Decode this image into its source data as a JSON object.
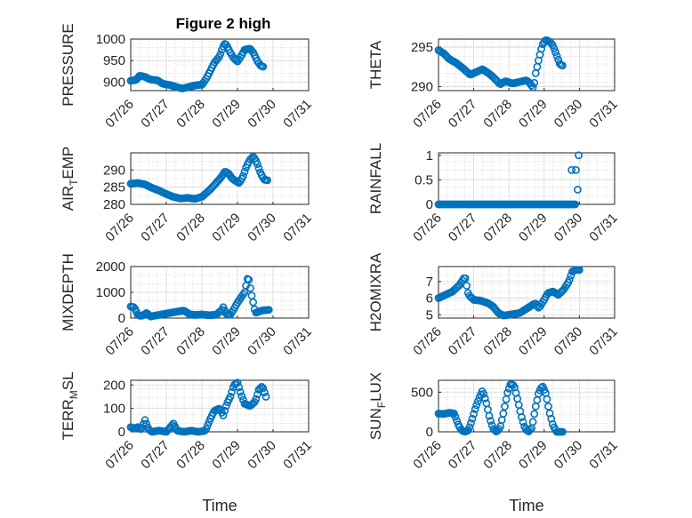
{
  "figure_title": "Figure 2 high",
  "series_color": "#0072BD",
  "chart_data": [
    {
      "type": "scatter",
      "name": "pressure",
      "ylabel": "PRESSURE",
      "ylabel_sub": "",
      "xlim": [
        0,
        5
      ],
      "ylim": [
        880,
        1000
      ],
      "yticks": [
        900,
        950,
        1000
      ],
      "xticks": [
        "07/26",
        "07/27",
        "07/28",
        "07/29",
        "07/30",
        "07/31"
      ],
      "xlabel": "",
      "marker": "circle-open",
      "anchors": [
        [
          0,
          903
        ],
        [
          0.15,
          905
        ],
        [
          0.25,
          915
        ],
        [
          0.4,
          912
        ],
        [
          0.55,
          906
        ],
        [
          0.75,
          904
        ],
        [
          0.9,
          896
        ],
        [
          1.1,
          893
        ],
        [
          1.3,
          888
        ],
        [
          1.45,
          885
        ],
        [
          1.6,
          888
        ],
        [
          1.8,
          892
        ],
        [
          2.0,
          894
        ],
        [
          2.1,
          905
        ],
        [
          2.2,
          920
        ],
        [
          2.35,
          945
        ],
        [
          2.5,
          960
        ],
        [
          2.58,
          980
        ],
        [
          2.65,
          990
        ],
        [
          2.7,
          985
        ],
        [
          2.8,
          968
        ],
        [
          2.9,
          955
        ],
        [
          3.0,
          948
        ],
        [
          3.1,
          960
        ],
        [
          3.2,
          975
        ],
        [
          3.35,
          978
        ],
        [
          3.45,
          968
        ],
        [
          3.55,
          950
        ],
        [
          3.65,
          938
        ],
        [
          3.75,
          935
        ]
      ]
    },
    {
      "type": "scatter",
      "name": "theta",
      "ylabel": "THETA",
      "ylabel_sub": "",
      "xlim": [
        0,
        5
      ],
      "ylim": [
        289.5,
        296
      ],
      "yticks": [
        290,
        295
      ],
      "xticks": [
        "07/26",
        "07/27",
        "07/28",
        "07/29",
        "07/30",
        "07/31"
      ],
      "xlabel": "",
      "marker": "circle-open",
      "anchors": [
        [
          0,
          294.6
        ],
        [
          0.15,
          294.2
        ],
        [
          0.3,
          293.5
        ],
        [
          0.5,
          293.0
        ],
        [
          0.7,
          292.3
        ],
        [
          0.9,
          291.5
        ],
        [
          1.05,
          291.8
        ],
        [
          1.25,
          292.2
        ],
        [
          1.45,
          291.6
        ],
        [
          1.6,
          291.0
        ],
        [
          1.75,
          290.3
        ],
        [
          1.9,
          290.7
        ],
        [
          2.1,
          290.4
        ],
        [
          2.3,
          290.6
        ],
        [
          2.5,
          290.8
        ],
        [
          2.6,
          290.4
        ],
        [
          2.7,
          289.8
        ],
        [
          2.75,
          291.5
        ],
        [
          2.85,
          293.5
        ],
        [
          2.95,
          295.3
        ],
        [
          3.05,
          295.9
        ],
        [
          3.15,
          295.7
        ],
        [
          3.25,
          295.2
        ],
        [
          3.35,
          294.0
        ],
        [
          3.45,
          292.8
        ],
        [
          3.55,
          292.6
        ]
      ]
    },
    {
      "type": "scatter",
      "name": "air-temp",
      "ylabel": "AIR",
      "ylabel_sub": "T",
      "ylabel_tail": "EMP",
      "xlim": [
        0,
        5
      ],
      "ylim": [
        280,
        295
      ],
      "yticks": [
        280,
        285,
        290
      ],
      "xticks": [
        "07/26",
        "07/27",
        "07/28",
        "07/29",
        "07/30",
        "07/31"
      ],
      "xlabel": "",
      "marker": "circle-open",
      "anchors": [
        [
          0,
          286
        ],
        [
          0.2,
          286.2
        ],
        [
          0.4,
          285.8
        ],
        [
          0.6,
          284.8
        ],
        [
          0.8,
          284
        ],
        [
          1.0,
          283
        ],
        [
          1.2,
          282.2
        ],
        [
          1.4,
          281.7
        ],
        [
          1.6,
          281.9
        ],
        [
          1.8,
          281.6
        ],
        [
          2.0,
          282.2
        ],
        [
          2.2,
          284
        ],
        [
          2.4,
          286.2
        ],
        [
          2.55,
          288
        ],
        [
          2.65,
          289.6
        ],
        [
          2.75,
          289
        ],
        [
          2.85,
          287.5
        ],
        [
          2.95,
          286.8
        ],
        [
          3.05,
          286.2
        ],
        [
          3.15,
          288
        ],
        [
          3.25,
          291
        ],
        [
          3.35,
          293
        ],
        [
          3.45,
          294
        ],
        [
          3.55,
          292
        ],
        [
          3.65,
          289
        ],
        [
          3.75,
          287.2
        ],
        [
          3.85,
          287
        ]
      ]
    },
    {
      "type": "scatter",
      "name": "rainfall",
      "ylabel": "RAINFALL",
      "ylabel_sub": "",
      "xlim": [
        0,
        5
      ],
      "ylim": [
        0,
        1.05
      ],
      "yticks": [
        0,
        0.5,
        1
      ],
      "xticks": [
        "07/26",
        "07/27",
        "07/28",
        "07/29",
        "07/30",
        "07/31"
      ],
      "xlabel": "",
      "marker": "circle-open",
      "zero_span": [
        0,
        3.9
      ],
      "extra": [
        [
          3.78,
          0.7
        ],
        [
          3.9,
          0.7
        ],
        [
          3.95,
          0.3
        ],
        [
          3.98,
          1.0
        ]
      ]
    },
    {
      "type": "scatter",
      "name": "mixdepth",
      "ylabel": "MIXDEPTH",
      "ylabel_sub": "",
      "xlim": [
        0,
        5
      ],
      "ylim": [
        0,
        2000
      ],
      "yticks": [
        0,
        1000,
        2000
      ],
      "xticks": [
        "07/26",
        "07/27",
        "07/28",
        "07/29",
        "07/30",
        "07/31"
      ],
      "xlabel": "",
      "marker": "circle-open",
      "anchors": [
        [
          0,
          450
        ],
        [
          0.1,
          420
        ],
        [
          0.2,
          120
        ],
        [
          0.3,
          80
        ],
        [
          0.45,
          200
        ],
        [
          0.55,
          60
        ],
        [
          0.7,
          100
        ],
        [
          0.9,
          150
        ],
        [
          1.1,
          200
        ],
        [
          1.3,
          250
        ],
        [
          1.5,
          290
        ],
        [
          1.65,
          150
        ],
        [
          1.8,
          120
        ],
        [
          2.0,
          140
        ],
        [
          2.2,
          110
        ],
        [
          2.4,
          130
        ],
        [
          2.55,
          300
        ],
        [
          2.6,
          420
        ],
        [
          2.7,
          120
        ],
        [
          2.8,
          140
        ],
        [
          2.9,
          350
        ],
        [
          3.0,
          600
        ],
        [
          3.1,
          800
        ],
        [
          3.2,
          1000
        ],
        [
          3.3,
          1650
        ],
        [
          3.38,
          1000
        ],
        [
          3.45,
          550
        ],
        [
          3.5,
          200
        ],
        [
          3.6,
          250
        ],
        [
          3.7,
          300
        ],
        [
          3.8,
          310
        ],
        [
          3.9,
          320
        ]
      ]
    },
    {
      "type": "scatter",
      "name": "h2o-mix-ratio",
      "ylabel": "H2OMIXRA",
      "ylabel_sub": "",
      "xlim": [
        0,
        5
      ],
      "ylim": [
        4.8,
        7.9
      ],
      "yticks": [
        5,
        6,
        7
      ],
      "xticks": [
        "07/26",
        "07/27",
        "07/28",
        "07/29",
        "07/30",
        "07/31"
      ],
      "xlabel": "",
      "marker": "circle-open",
      "anchors": [
        [
          0,
          6.0
        ],
        [
          0.2,
          6.2
        ],
        [
          0.4,
          6.4
        ],
        [
          0.6,
          6.8
        ],
        [
          0.75,
          7.3
        ],
        [
          0.85,
          6.2
        ],
        [
          1.0,
          5.9
        ],
        [
          1.2,
          5.85
        ],
        [
          1.4,
          5.7
        ],
        [
          1.55,
          5.5
        ],
        [
          1.7,
          5.1
        ],
        [
          1.85,
          4.95
        ],
        [
          2.0,
          5.0
        ],
        [
          2.15,
          5.05
        ],
        [
          2.3,
          5.1
        ],
        [
          2.45,
          5.3
        ],
        [
          2.6,
          5.5
        ],
        [
          2.75,
          5.7
        ],
        [
          2.85,
          5.4
        ],
        [
          3.0,
          5.9
        ],
        [
          3.1,
          6.3
        ],
        [
          3.25,
          6.4
        ],
        [
          3.4,
          6.2
        ],
        [
          3.55,
          6.5
        ],
        [
          3.7,
          7.0
        ],
        [
          3.8,
          7.6
        ],
        [
          3.9,
          7.7
        ],
        [
          4.0,
          7.7
        ]
      ]
    },
    {
      "type": "scatter",
      "name": "terr-msl",
      "ylabel": "TERR",
      "ylabel_sub": "M",
      "ylabel_tail": "SL",
      "xlim": [
        0,
        5
      ],
      "ylim": [
        0,
        220
      ],
      "yticks": [
        0,
        100,
        200
      ],
      "xticks": [
        "07/26",
        "07/27",
        "07/28",
        "07/29",
        "07/30",
        "07/31"
      ],
      "xlabel": "Time",
      "marker": "circle-open",
      "anchors": [
        [
          0,
          20
        ],
        [
          0.1,
          15
        ],
        [
          0.2,
          20
        ],
        [
          0.3,
          10
        ],
        [
          0.4,
          50
        ],
        [
          0.5,
          10
        ],
        [
          0.6,
          0
        ],
        [
          0.8,
          5
        ],
        [
          1.0,
          0
        ],
        [
          1.2,
          35
        ],
        [
          1.3,
          5
        ],
        [
          1.5,
          0
        ],
        [
          1.7,
          5
        ],
        [
          1.9,
          0
        ],
        [
          2.1,
          5
        ],
        [
          2.25,
          60
        ],
        [
          2.35,
          90
        ],
        [
          2.5,
          100
        ],
        [
          2.6,
          70
        ],
        [
          2.7,
          120
        ],
        [
          2.8,
          150
        ],
        [
          2.9,
          200
        ],
        [
          3.0,
          210
        ],
        [
          3.1,
          160
        ],
        [
          3.2,
          120
        ],
        [
          3.35,
          110
        ],
        [
          3.5,
          130
        ],
        [
          3.6,
          180
        ],
        [
          3.7,
          195
        ],
        [
          3.8,
          150
        ]
      ]
    },
    {
      "type": "scatter",
      "name": "sun-flux",
      "ylabel": "SUN",
      "ylabel_sub": "F",
      "ylabel_tail": "LUX",
      "xlim": [
        0,
        5
      ],
      "ylim": [
        0,
        650
      ],
      "yticks": [
        0,
        500
      ],
      "xticks": [
        "07/26",
        "07/27",
        "07/28",
        "07/29",
        "07/30",
        "07/31"
      ],
      "xlabel": "Time",
      "marker": "circle-open",
      "anchors": [
        [
          0,
          230
        ],
        [
          0.15,
          225
        ],
        [
          0.3,
          240
        ],
        [
          0.45,
          230
        ],
        [
          0.55,
          100
        ],
        [
          0.65,
          20
        ],
        [
          0.75,
          0
        ],
        [
          0.85,
          20
        ],
        [
          0.95,
          150
        ],
        [
          1.05,
          300
        ],
        [
          1.15,
          420
        ],
        [
          1.25,
          520
        ],
        [
          1.35,
          380
        ],
        [
          1.45,
          180
        ],
        [
          1.55,
          40
        ],
        [
          1.65,
          0
        ],
        [
          1.75,
          50
        ],
        [
          1.85,
          250
        ],
        [
          1.95,
          480
        ],
        [
          2.05,
          610
        ],
        [
          2.15,
          580
        ],
        [
          2.25,
          400
        ],
        [
          2.35,
          200
        ],
        [
          2.45,
          50
        ],
        [
          2.55,
          0
        ],
        [
          2.65,
          50
        ],
        [
          2.75,
          300
        ],
        [
          2.85,
          500
        ],
        [
          2.95,
          580
        ],
        [
          3.05,
          480
        ],
        [
          3.15,
          250
        ],
        [
          3.25,
          80
        ],
        [
          3.35,
          0
        ],
        [
          3.45,
          0
        ],
        [
          3.55,
          0
        ]
      ]
    }
  ]
}
